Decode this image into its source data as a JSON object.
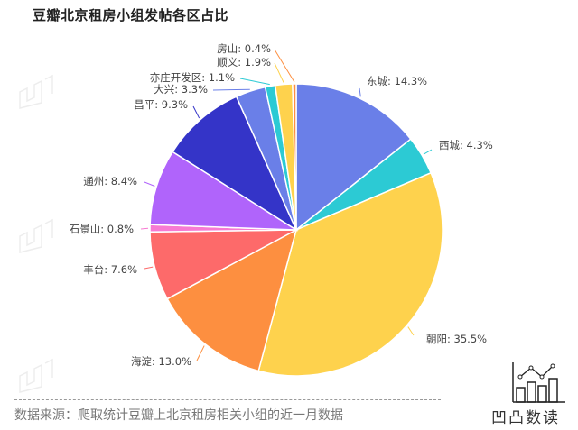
{
  "header": {
    "title": "豆瓣北京租房小组发帖各区占比"
  },
  "footer": {
    "source": "数据来源：爬取统计豆瓣上北京租房相关小组的近一月数据",
    "logo_text": "凹凸数读"
  },
  "chart_data": {
    "type": "pie",
    "title": "豆瓣北京租房小组发帖各区占比",
    "unit": "%",
    "start_angle": "12 o'clock, clockwise",
    "slices": [
      {
        "label": "东城",
        "value": 14.3,
        "color": "#6a7fe8",
        "display": "东城: 14.3%"
      },
      {
        "label": "西城",
        "value": 4.3,
        "color": "#2ccad4",
        "display": "西城: 4.3%"
      },
      {
        "label": "朝阳",
        "value": 35.5,
        "color": "#fed24d",
        "display": "朝阳: 35.5%"
      },
      {
        "label": "海淀",
        "value": 13.0,
        "color": "#fd8f40",
        "display": "海淀: 13.0%"
      },
      {
        "label": "丰台",
        "value": 7.6,
        "color": "#fd6a6a",
        "display": "丰台: 7.6%"
      },
      {
        "label": "石景山",
        "value": 0.8,
        "color": "#f77ad2",
        "display": "石景山: 0.8%"
      },
      {
        "label": "通州",
        "value": 8.4,
        "color": "#b064fb",
        "display": "通州: 8.4%"
      },
      {
        "label": "昌平",
        "value": 9.3,
        "color": "#3434c8",
        "display": "昌平: 9.3%"
      },
      {
        "label": "大兴",
        "value": 3.3,
        "color": "#6a7fe8",
        "display": "大兴: 3.3%"
      },
      {
        "label": "亦庄开发区",
        "value": 1.1,
        "color": "#2ccad4",
        "display": "亦庄开发区: 1.1%"
      },
      {
        "label": "顺义",
        "value": 1.9,
        "color": "#fed24d",
        "display": "顺义: 1.9%"
      },
      {
        "label": "房山",
        "value": 0.4,
        "color": "#fd8f40",
        "display": "房山: 0.4%"
      }
    ]
  }
}
